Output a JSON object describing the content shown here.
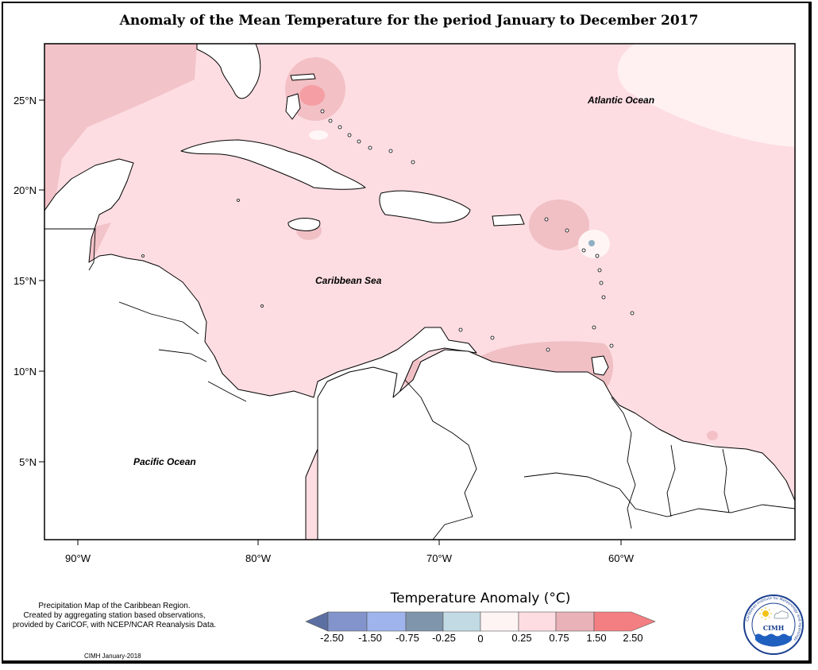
{
  "title": "Anomaly of the Mean Temperature for the period January to December 2017",
  "axes": {
    "latitude_ticks": [
      "25°N",
      "20°N",
      "15°N",
      "10°N",
      "5°N"
    ],
    "longitude_ticks": [
      "90°W",
      "80°W",
      "70°W",
      "60°W"
    ]
  },
  "map_labels": {
    "atlantic": "Atlantic Ocean",
    "caribbean": "Caribbean Sea",
    "pacific": "Pacific Ocean"
  },
  "legend": {
    "title": "Temperature Anomaly (°C)",
    "tick_labels": [
      "-2.50",
      "-1.50",
      "-0.75",
      "-0.25",
      "0",
      "0.25",
      "0.75",
      "1.50",
      "2.50"
    ],
    "colors": [
      "#5c6fa3",
      "#8294cb",
      "#9fb3ec",
      "#7f95ac",
      "#c2dae3",
      "#fff4f4",
      "#fddde2",
      "#e9b2b8",
      "#f37f82"
    ]
  },
  "note": {
    "lines": [
      "Precipitation Map of the Caribbean Region.",
      "Created by aggregating station based observations,",
      "provided by CariCOF, with NCEP/NCAR Reanalysis Data."
    ],
    "credit": "CIMH January-2018"
  },
  "logo": {
    "text": "CIMH",
    "ring_text": "Caribbean Institute for Meteorology and Hydrology"
  }
}
